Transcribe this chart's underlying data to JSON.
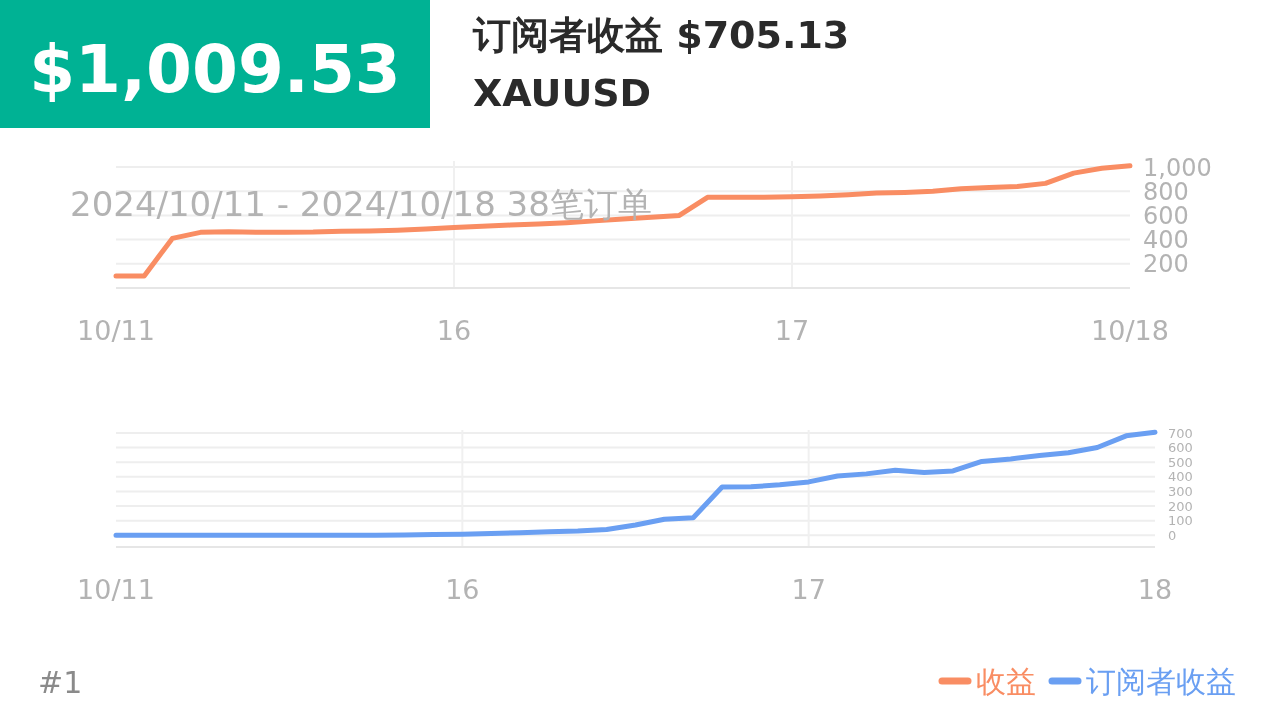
{
  "chart_data": [
    {
      "type": "line",
      "title": "订阅者收益 $705.13",
      "subtitle": "XAUUSD",
      "annotations": [
        "$1,009.53",
        "2024/10/11 - 2024/10/18  38笔订单"
      ],
      "categories": [
        "10/11",
        null,
        null,
        null,
        null,
        null,
        null,
        null,
        null,
        null,
        null,
        null,
        "16",
        null,
        null,
        null,
        null,
        null,
        null,
        null,
        null,
        null,
        null,
        null,
        "17",
        null,
        null,
        null,
        null,
        null,
        null,
        null,
        null,
        null,
        null,
        null,
        "10/18"
      ],
      "series": [
        {
          "name": "收益",
          "color": "#f98d63",
          "values": [
            100,
            100,
            410,
            460,
            465,
            460,
            460,
            462,
            470,
            472,
            478,
            488,
            500,
            510,
            520,
            530,
            540,
            555,
            570,
            585,
            600,
            750,
            750,
            750,
            755,
            760,
            770,
            785,
            790,
            800,
            820,
            830,
            840,
            865,
            950,
            990,
            1010
          ]
        }
      ],
      "ylim": [
        0,
        1050
      ],
      "yticks": [
        200,
        400,
        600,
        800,
        {
          "value": 1000,
          "label": "1,000"
        }
      ],
      "grid": true,
      "legend": "bottom"
    },
    {
      "type": "line",
      "annotations": [
        "#1"
      ],
      "categories": [
        "10/11",
        null,
        null,
        null,
        null,
        null,
        null,
        null,
        null,
        null,
        null,
        null,
        "16",
        null,
        null,
        null,
        null,
        null,
        null,
        null,
        null,
        null,
        null,
        null,
        "17",
        null,
        null,
        null,
        null,
        null,
        null,
        null,
        null,
        null,
        null,
        null,
        "18"
      ],
      "series": [
        {
          "name": "订阅者收益",
          "color": "#6a9ff2",
          "values": [
            0,
            0,
            0,
            0,
            0,
            0,
            0,
            0,
            0,
            0,
            2,
            5,
            8,
            12,
            18,
            25,
            30,
            40,
            70,
            110,
            120,
            330,
            332,
            345,
            365,
            405,
            420,
            445,
            430,
            440,
            505,
            522,
            545,
            565,
            600,
            680,
            705
          ]
        }
      ],
      "ylim": [
        -80,
        720
      ],
      "yticks": [
        0,
        100,
        200,
        300,
        400,
        500,
        600,
        700
      ],
      "grid": true,
      "legend": "bottom"
    }
  ]
}
